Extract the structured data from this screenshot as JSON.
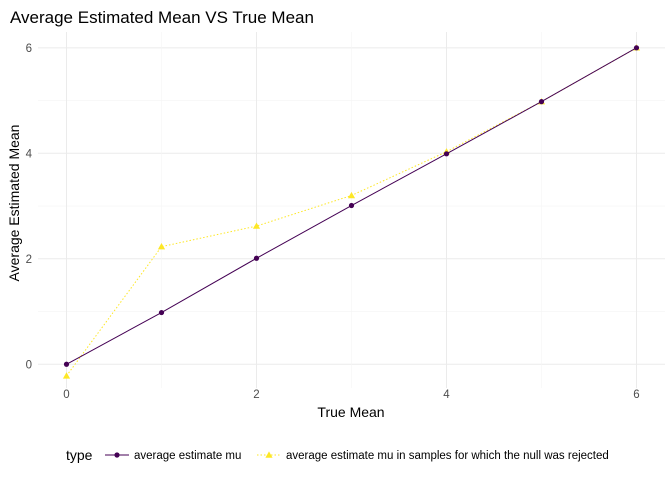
{
  "chart_data": {
    "type": "line",
    "title": "Average Estimated Mean VS True Mean",
    "xlabel": "True Mean",
    "ylabel": "Average Estimated Mean",
    "xlim": [
      -0.3,
      6.3
    ],
    "ylim": [
      -0.45,
      6.3
    ],
    "x_ticks": [
      0,
      2,
      4,
      6
    ],
    "y_ticks": [
      0,
      2,
      4,
      6
    ],
    "x_tick_labels": [
      "0",
      "2",
      "4",
      "6"
    ],
    "y_tick_labels": [
      "0",
      "2",
      "4",
      "6"
    ],
    "grid": true,
    "legend": {
      "title": "type",
      "position": "bottom"
    },
    "x": [
      0,
      1,
      2,
      3,
      4,
      5,
      6
    ],
    "series": [
      {
        "name": "average estimate mu",
        "values": [
          0.0,
          0.98,
          2.01,
          3.01,
          3.99,
          4.98,
          6.0
        ],
        "color": "#440154",
        "marker": "circle",
        "line_style": "solid"
      },
      {
        "name": "average estimate mu in samples for which the null was rejected",
        "values": [
          -0.22,
          2.23,
          2.62,
          3.2,
          4.03,
          4.98,
          6.0
        ],
        "color": "#fde725",
        "marker": "triangle",
        "line_style": "dotted"
      }
    ]
  }
}
